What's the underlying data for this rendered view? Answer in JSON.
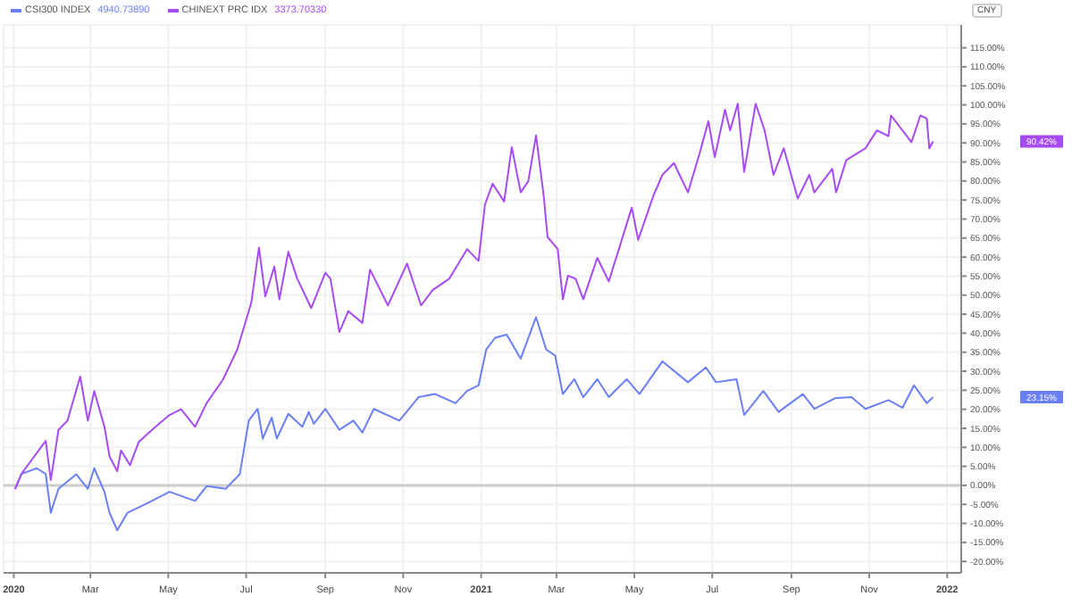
{
  "chart_data": {
    "type": "line",
    "ylabel": "CNY",
    "xlim": [
      "2019-12-24",
      "2022-01-12"
    ],
    "xticks": [
      {
        "value": "2020-01-01",
        "label": "2020"
      },
      {
        "value": "2020-03-01",
        "label": "Mar"
      },
      {
        "value": "2020-05-01",
        "label": "May"
      },
      {
        "value": "2020-07-01",
        "label": "Jul"
      },
      {
        "value": "2020-09-01",
        "label": "Sep"
      },
      {
        "value": "2020-11-01",
        "label": "Nov"
      },
      {
        "value": "2021-01-01",
        "label": "2021"
      },
      {
        "value": "2021-03-01",
        "label": "Mar"
      },
      {
        "value": "2021-05-01",
        "label": "May"
      },
      {
        "value": "2021-07-01",
        "label": "Jul"
      },
      {
        "value": "2021-09-01",
        "label": "Sep"
      },
      {
        "value": "2021-11-01",
        "label": "Nov"
      },
      {
        "value": "2022-01-01",
        "label": "2022"
      }
    ],
    "ylim": [
      -23,
      121
    ],
    "yticks": [
      {
        "value": -20,
        "label": "-20.00%"
      },
      {
        "value": -15,
        "label": "-15.00%"
      },
      {
        "value": -10,
        "label": "-10.00%"
      },
      {
        "value": -5,
        "label": "-5.00%"
      },
      {
        "value": 0,
        "label": "0.00%"
      },
      {
        "value": 5,
        "label": "5.00%"
      },
      {
        "value": 10,
        "label": "10.00%"
      },
      {
        "value": 15,
        "label": "15.00%"
      },
      {
        "value": 20,
        "label": "20.00%"
      },
      {
        "value": 25,
        "label": "25.00%"
      },
      {
        "value": 30,
        "label": "30.00%"
      },
      {
        "value": 35,
        "label": "35.00%"
      },
      {
        "value": 40,
        "label": "40.00%"
      },
      {
        "value": 45,
        "label": "45.00%"
      },
      {
        "value": 50,
        "label": "50.00%"
      },
      {
        "value": 55,
        "label": "55.00%"
      },
      {
        "value": 60,
        "label": "60.00%"
      },
      {
        "value": 65,
        "label": "65.00%"
      },
      {
        "value": 70,
        "label": "70.00%"
      },
      {
        "value": 75,
        "label": "75.00%"
      },
      {
        "value": 80,
        "label": "80.00%"
      },
      {
        "value": 85,
        "label": "85.00%"
      },
      {
        "value": 90,
        "label": "90.00%"
      },
      {
        "value": 95,
        "label": "95.00%"
      },
      {
        "value": 100,
        "label": "100.00%"
      },
      {
        "value": 105,
        "label": "105.00%"
      },
      {
        "value": 110,
        "label": "110.00%"
      },
      {
        "value": 115,
        "label": "115.00%"
      }
    ],
    "grid": true,
    "legend": "top left",
    "marker": "none",
    "line_style": "solid",
    "ref_lines": [
      {
        "axis": "y",
        "value": 0,
        "color": "#cccccc"
      }
    ],
    "annotations": [
      "4940.73890",
      "3373.70330",
      "23.15%",
      "90.42%"
    ],
    "series": [
      {
        "name": "CSI300 INDEX",
        "color": "#6a7ff5",
        "x": [
          "2020-01-02",
          "2020-01-07",
          "2020-01-19",
          "2020-01-26",
          "2020-01-30",
          "2020-02-05",
          "2020-02-19",
          "2020-02-28",
          "2020-03-04",
          "2020-03-12",
          "2020-03-16",
          "2020-03-22",
          "2020-03-30",
          "2020-04-14",
          "2020-05-02",
          "2020-05-22",
          "2020-05-31",
          "2020-06-15",
          "2020-06-26",
          "2020-07-03",
          "2020-07-10",
          "2020-07-14",
          "2020-07-21",
          "2020-07-25",
          "2020-08-03",
          "2020-08-14",
          "2020-08-19",
          "2020-08-23",
          "2020-09-01",
          "2020-09-12",
          "2020-09-23",
          "2020-09-30",
          "2020-10-09",
          "2020-10-29",
          "2020-11-13",
          "2020-11-26",
          "2020-12-12",
          "2020-12-21",
          "2020-12-30",
          "2021-01-05",
          "2021-01-12",
          "2021-01-21",
          "2021-02-01",
          "2021-02-13",
          "2021-02-21",
          "2021-02-28",
          "2021-03-06",
          "2021-03-15",
          "2021-03-22",
          "2021-04-02",
          "2021-04-11",
          "2021-04-25",
          "2021-05-05",
          "2021-05-23",
          "2021-06-12",
          "2021-06-26",
          "2021-07-04",
          "2021-07-20",
          "2021-07-26",
          "2021-08-10",
          "2021-08-22",
          "2021-09-10",
          "2021-09-19",
          "2021-10-05",
          "2021-10-18",
          "2021-10-29",
          "2021-11-16",
          "2021-11-27",
          "2021-12-06",
          "2021-12-16",
          "2021-12-21"
        ],
        "values": [
          -1,
          3,
          4.5,
          3,
          -7.2,
          -0.9,
          2.9,
          -0.9,
          4.5,
          -1.7,
          -7.2,
          -11.8,
          -7.2,
          -4.8,
          -1.7,
          -4.1,
          -0.2,
          -0.9,
          2.9,
          17,
          20.1,
          12.3,
          17.8,
          12.3,
          18.8,
          15.4,
          19.3,
          16.2,
          20.1,
          14.6,
          17,
          13.9,
          20.1,
          17,
          23.2,
          24,
          21.6,
          24.8,
          26.3,
          35.7,
          38.8,
          39.6,
          33.3,
          44.2,
          35.7,
          34.1,
          24,
          27.9,
          23.2,
          27.9,
          23.2,
          27.9,
          24,
          32.6,
          27.1,
          31,
          27.1,
          27.9,
          18.5,
          24.8,
          19.3,
          24,
          20.1,
          22.9,
          23.2,
          20.1,
          22.4,
          20.4,
          26.3,
          21.6,
          23.2
        ]
      },
      {
        "name": "CHINEXT PRC IDX",
        "color": "#a64bf4",
        "x": [
          "2020-01-02",
          "2020-01-07",
          "2020-01-17",
          "2020-01-26",
          "2020-01-30",
          "2020-02-05",
          "2020-02-12",
          "2020-02-22",
          "2020-02-28",
          "2020-03-04",
          "2020-03-12",
          "2020-03-16",
          "2020-03-22",
          "2020-03-25",
          "2020-04-01",
          "2020-04-08",
          "2020-04-21",
          "2020-05-02",
          "2020-05-11",
          "2020-05-22",
          "2020-05-31",
          "2020-06-13",
          "2020-06-24",
          "2020-07-05",
          "2020-07-11",
          "2020-07-16",
          "2020-07-23",
          "2020-07-27",
          "2020-08-03",
          "2020-08-10",
          "2020-08-21",
          "2020-09-01",
          "2020-09-05",
          "2020-09-12",
          "2020-09-19",
          "2020-09-30",
          "2020-10-06",
          "2020-10-20",
          "2020-11-04",
          "2020-11-15",
          "2020-11-24",
          "2020-12-07",
          "2020-12-21",
          "2020-12-30",
          "2021-01-04",
          "2021-01-10",
          "2021-01-19",
          "2021-01-25",
          "2021-02-01",
          "2021-02-07",
          "2021-02-13",
          "2021-02-19",
          "2021-02-22",
          "2021-03-02",
          "2021-03-06",
          "2021-03-10",
          "2021-03-16",
          "2021-03-22",
          "2021-04-02",
          "2021-04-11",
          "2021-04-29",
          "2021-05-04",
          "2021-05-16",
          "2021-05-23",
          "2021-06-01",
          "2021-06-12",
          "2021-06-21",
          "2021-06-28",
          "2021-07-03",
          "2021-07-11",
          "2021-07-15",
          "2021-07-21",
          "2021-07-26",
          "2021-08-04",
          "2021-08-11",
          "2021-08-18",
          "2021-08-26",
          "2021-09-06",
          "2021-09-15",
          "2021-09-19",
          "2021-10-03",
          "2021-10-06",
          "2021-10-14",
          "2021-10-29",
          "2021-11-07",
          "2021-11-16",
          "2021-11-18",
          "2021-12-04",
          "2021-12-11",
          "2021-12-16",
          "2021-12-18",
          "2021-12-21"
        ],
        "values": [
          -1,
          3,
          7.6,
          11.7,
          1.4,
          14.6,
          17,
          28.6,
          17,
          24.8,
          15.4,
          7.6,
          3.7,
          9.2,
          5.3,
          11.5,
          15.4,
          18.5,
          20,
          15.4,
          21.6,
          27.9,
          35.7,
          48,
          62.5,
          49.7,
          57.5,
          48.9,
          61.4,
          54.3,
          46.6,
          55.9,
          54.3,
          40.3,
          45.8,
          42.7,
          56.7,
          47.3,
          58.3,
          47.3,
          51.3,
          54.3,
          62.1,
          59,
          73.8,
          79.3,
          74.6,
          88.9,
          77,
          80,
          92,
          76.2,
          65.3,
          62.1,
          48.9,
          55.1,
          54.3,
          48.9,
          59.8,
          53.6,
          73,
          64.5,
          76.2,
          81.6,
          84.7,
          77,
          87.1,
          95.7,
          86.3,
          98.7,
          93.3,
          100.3,
          82.4,
          100.3,
          93.3,
          81.6,
          88.6,
          75.4,
          81.6,
          77,
          83.2,
          77,
          85.5,
          88.6,
          93.3,
          91.8,
          97.2,
          90.2,
          97.2,
          96.4,
          88.6,
          90.4
        ]
      }
    ]
  }
}
